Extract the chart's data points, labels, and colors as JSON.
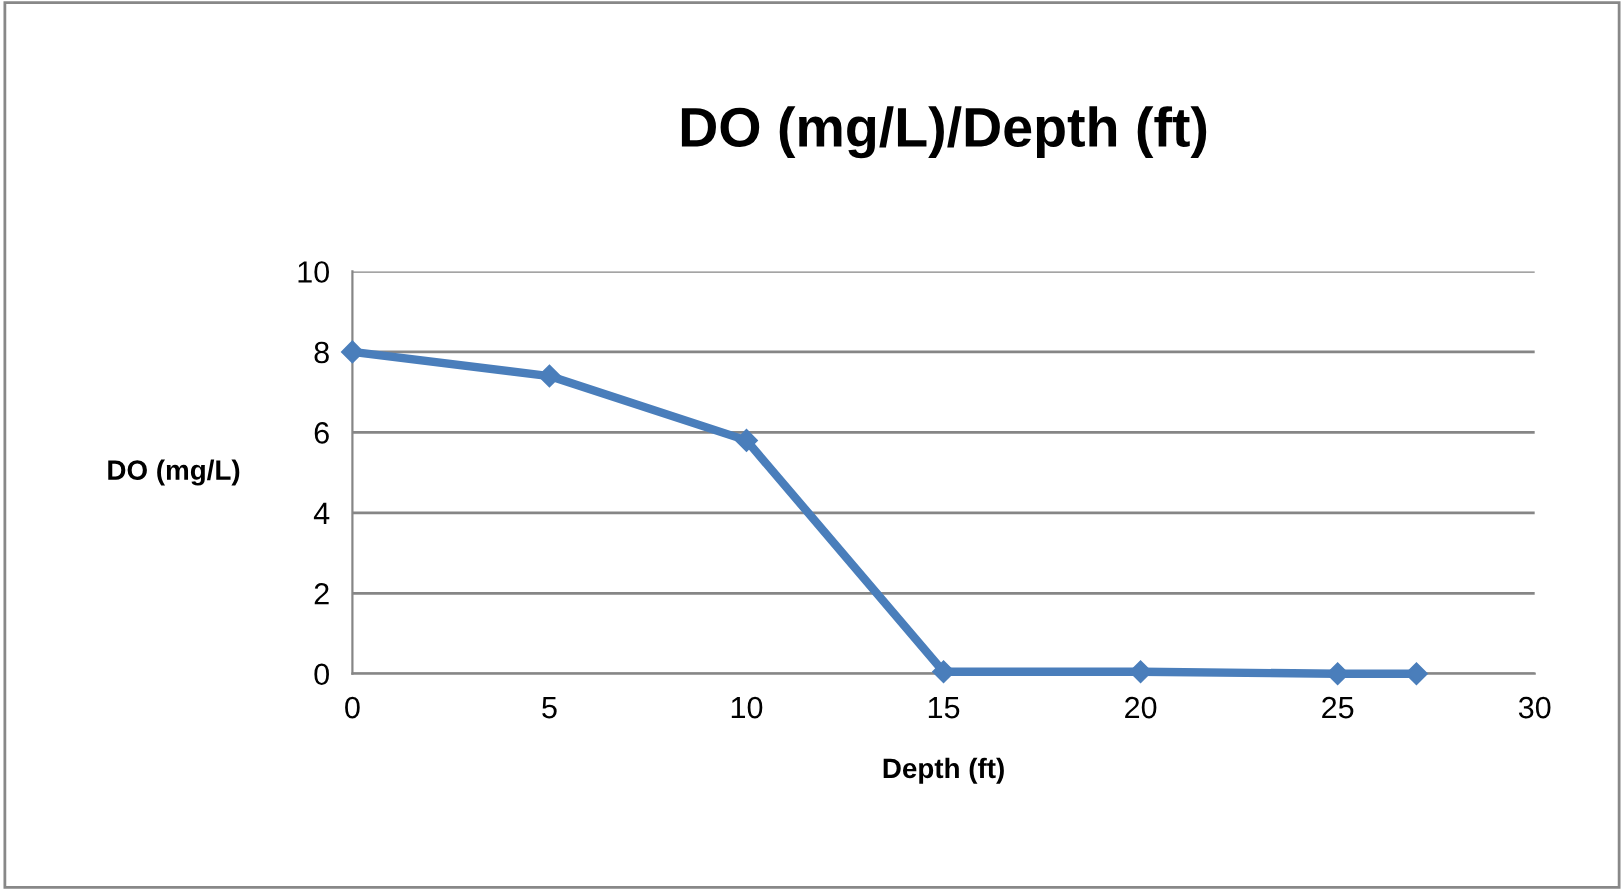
{
  "chart_data": {
    "type": "line",
    "title": "DO (mg/L)/Depth (ft)",
    "xlabel": "Depth (ft)",
    "ylabel": "DO (mg/L)",
    "x": [
      0,
      5,
      10,
      15,
      20,
      25,
      27
    ],
    "series": [
      {
        "color": "#4a7ebb",
        "values": [
          8,
          7.4,
          5.8,
          0.05,
          0.05,
          0,
          0
        ]
      }
    ],
    "xlim": [
      0,
      30
    ],
    "xticks": [
      0,
      5,
      10,
      15,
      20,
      25,
      30
    ],
    "ylim": [
      0,
      10
    ],
    "yticks": [
      0,
      2,
      4,
      6,
      8,
      10
    ],
    "grid": "y",
    "marker": "diamond",
    "line_style": "solid",
    "legend": false
  }
}
